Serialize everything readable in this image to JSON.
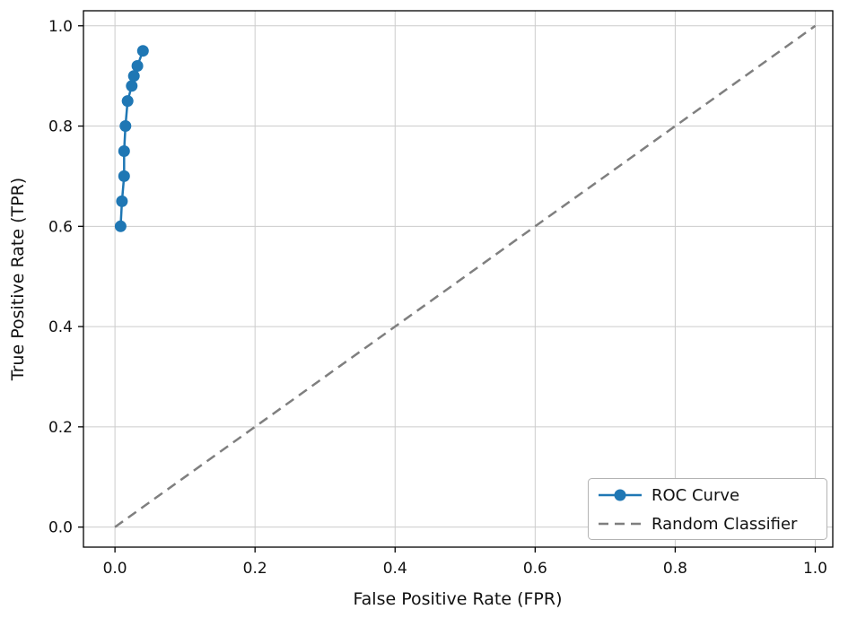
{
  "chart_data": {
    "type": "line",
    "title": "",
    "xlabel": "False Positive Rate (FPR)",
    "ylabel": "True Positive Rate (TPR)",
    "xticks": [
      0.0,
      0.2,
      0.4,
      0.6,
      0.8,
      1.0
    ],
    "yticks": [
      0.0,
      0.2,
      0.4,
      0.6,
      0.8,
      1.0
    ],
    "xtick_labels": [
      "0.0",
      "0.2",
      "0.4",
      "0.6",
      "0.8",
      "1.0"
    ],
    "ytick_labels": [
      "0.0",
      "0.2",
      "0.4",
      "0.6",
      "0.8",
      "1.0"
    ],
    "xlim": [
      -0.045,
      1.025
    ],
    "ylim": [
      -0.04,
      1.03
    ],
    "grid": true,
    "legend_position": "lower right",
    "series": [
      {
        "name": "ROC Curve",
        "type": "line",
        "style": "solid",
        "marker": "circle",
        "color": "#1f77b4",
        "points": [
          [
            0.008,
            0.6
          ],
          [
            0.01,
            0.65
          ],
          [
            0.013,
            0.7
          ],
          [
            0.013,
            0.75
          ],
          [
            0.015,
            0.8
          ],
          [
            0.018,
            0.85
          ],
          [
            0.024,
            0.88
          ],
          [
            0.027,
            0.9
          ],
          [
            0.032,
            0.92
          ],
          [
            0.04,
            0.95
          ]
        ]
      },
      {
        "name": "Random Classifier",
        "type": "line",
        "style": "dashed",
        "marker": "none",
        "color": "#7f7f7f",
        "points": [
          [
            0.0,
            0.0
          ],
          [
            1.0,
            1.0
          ]
        ]
      }
    ],
    "colors": {
      "grid": "#cccccc",
      "axis": "#000000",
      "background": "#ffffff"
    }
  }
}
